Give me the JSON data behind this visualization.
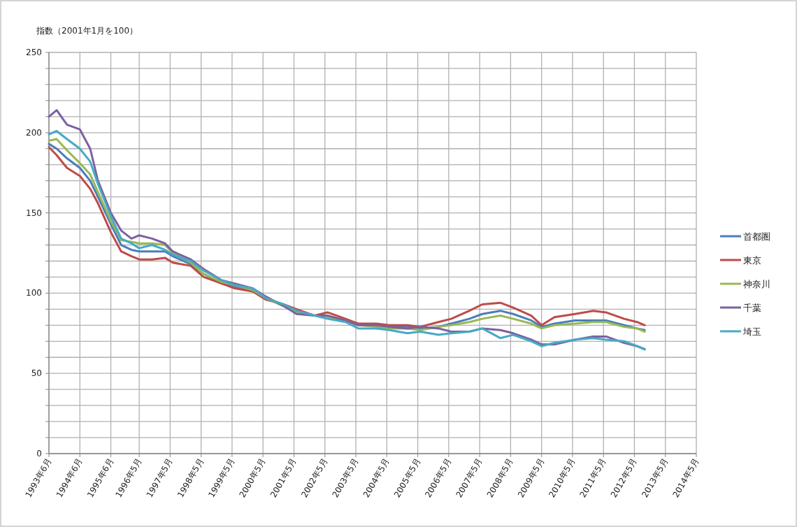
{
  "chart_data": {
    "type": "line",
    "ylabel": "指数（2001年1月を100）",
    "x": [
      "1993-06",
      "1993-09",
      "1994-01",
      "1994-06",
      "1994-10",
      "1995-01",
      "1995-06",
      "1995-10",
      "1996-02",
      "1996-05",
      "1996-10",
      "1997-03",
      "1997-06",
      "1998-01",
      "1998-06",
      "1999-01",
      "1999-06",
      "2000-01",
      "2000-06",
      "2001-01",
      "2001-06",
      "2002-01",
      "2002-06",
      "2003-01",
      "2003-06",
      "2004-01",
      "2004-06",
      "2005-01",
      "2005-06",
      "2006-01",
      "2006-06",
      "2007-01",
      "2007-06",
      "2008-01",
      "2008-06",
      "2009-01",
      "2009-05",
      "2009-10",
      "2010-06",
      "2011-01",
      "2011-06",
      "2012-01",
      "2012-06",
      "2012-09"
    ],
    "series": [
      {
        "name": "首都圏",
        "color": "#4a7ebb",
        "values": [
          193,
          190,
          184,
          178,
          170,
          160,
          143,
          130,
          127,
          126,
          126,
          126,
          123,
          118,
          112,
          106,
          104,
          102,
          97,
          92,
          89,
          86,
          85,
          83,
          80,
          80,
          79,
          79,
          78,
          79,
          81,
          84,
          87,
          89,
          87,
          83,
          79,
          81,
          83,
          83,
          83,
          80,
          78,
          77
        ]
      },
      {
        "name": "東京",
        "color": "#be4b48",
        "values": [
          191,
          186,
          178,
          173,
          165,
          156,
          138,
          126,
          123,
          121,
          121,
          122,
          119,
          117,
          110,
          106,
          103,
          101,
          96,
          93,
          90,
          86,
          88,
          84,
          81,
          81,
          80,
          80,
          79,
          82,
          84,
          89,
          93,
          94,
          91,
          86,
          80,
          85,
          87,
          89,
          88,
          84,
          82,
          80
        ]
      },
      {
        "name": "神奈川",
        "color": "#98b954",
        "values": [
          195,
          196,
          189,
          181,
          174,
          163,
          145,
          133,
          132,
          131,
          131,
          130,
          125,
          119,
          112,
          107,
          105,
          102,
          97,
          92,
          88,
          86,
          85,
          83,
          80,
          79,
          78,
          78,
          77,
          79,
          80,
          82,
          84,
          86,
          84,
          81,
          78,
          80,
          81,
          82,
          82,
          79,
          78,
          76
        ]
      },
      {
        "name": "千葉",
        "color": "#7d60a0",
        "values": [
          210,
          214,
          205,
          202,
          190,
          170,
          150,
          139,
          134,
          136,
          134,
          131,
          126,
          121,
          115,
          108,
          106,
          103,
          98,
          92,
          87,
          86,
          86,
          83,
          80,
          80,
          79,
          78,
          79,
          78,
          76,
          76,
          78,
          77,
          75,
          71,
          68,
          68,
          71,
          73,
          73,
          69,
          67,
          65
        ]
      },
      {
        "name": "埼玉",
        "color": "#46aac5",
        "values": [
          199,
          201,
          196,
          190,
          182,
          168,
          148,
          134,
          131,
          128,
          130,
          127,
          124,
          120,
          114,
          108,
          105,
          103,
          97,
          93,
          89,
          86,
          84,
          82,
          78,
          78,
          77,
          75,
          76,
          74,
          75,
          76,
          78,
          72,
          74,
          70,
          67,
          69,
          71,
          72,
          71,
          70,
          67,
          65
        ]
      }
    ],
    "xlim": [
      "1993-06",
      "2014-05"
    ],
    "xticks": [
      {
        "value": "1993-06",
        "label": "1993年6月"
      },
      {
        "value": "1994-06",
        "label": "1994年6月"
      },
      {
        "value": "1995-06",
        "label": "1995年6月"
      },
      {
        "value": "1996-05",
        "label": "1996年5月"
      },
      {
        "value": "1997-05",
        "label": "1997年5月"
      },
      {
        "value": "1998-05",
        "label": "1998年5月"
      },
      {
        "value": "1999-05",
        "label": "1999年5月"
      },
      {
        "value": "2000-05",
        "label": "2000年5月"
      },
      {
        "value": "2001-05",
        "label": "2001年5月"
      },
      {
        "value": "2002-05",
        "label": "2002年5月"
      },
      {
        "value": "2003-05",
        "label": "2003年5月"
      },
      {
        "value": "2004-05",
        "label": "2004年5月"
      },
      {
        "value": "2005-05",
        "label": "2005年5月"
      },
      {
        "value": "2006-05",
        "label": "2006年5月"
      },
      {
        "value": "2007-05",
        "label": "2007年5月"
      },
      {
        "value": "2008-05",
        "label": "2008年5月"
      },
      {
        "value": "2009-05",
        "label": "2009年5月"
      },
      {
        "value": "2010-05",
        "label": "2010年5月"
      },
      {
        "value": "2011-05",
        "label": "2011年5月"
      },
      {
        "value": "2012-05",
        "label": "2012年5月"
      },
      {
        "value": "2013-05",
        "label": "2013年5月"
      },
      {
        "value": "2014-05",
        "label": "2014年5月"
      }
    ],
    "ylim": [
      0,
      250
    ],
    "yticks": [
      0,
      {
        "value": 10,
        "label": null
      },
      {
        "value": 20,
        "label": null
      },
      {
        "value": 30,
        "label": null
      },
      {
        "value": 40,
        "label": null
      },
      50,
      {
        "value": 60,
        "label": null
      },
      {
        "value": 70,
        "label": null
      },
      {
        "value": 80,
        "label": null
      },
      {
        "value": 90,
        "label": null
      },
      100,
      {
        "value": 110,
        "label": null
      },
      {
        "value": 120,
        "label": null
      },
      {
        "value": 130,
        "label": null
      },
      {
        "value": 140,
        "label": null
      },
      150,
      {
        "value": 160,
        "label": null
      },
      {
        "value": 170,
        "label": null
      },
      {
        "value": 180,
        "label": null
      },
      {
        "value": 190,
        "label": null
      },
      200,
      {
        "value": 210,
        "label": null
      },
      {
        "value": 220,
        "label": null
      },
      {
        "value": 230,
        "label": null
      },
      {
        "value": 240,
        "label": null
      },
      250
    ],
    "grid": true,
    "legend": "right",
    "marker": "none",
    "line_style": "solid"
  }
}
